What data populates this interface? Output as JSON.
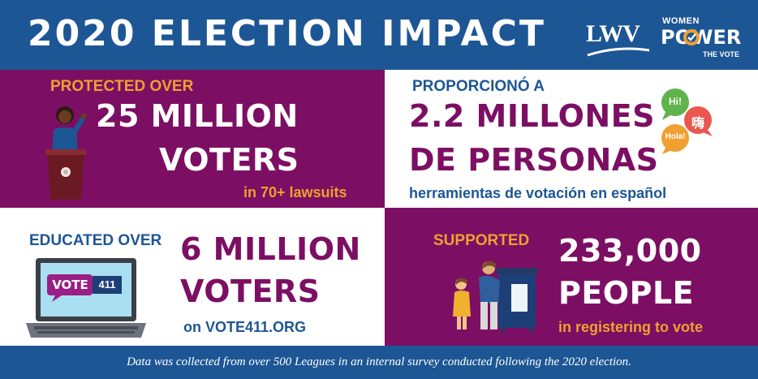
{
  "header": {
    "title": "2020 ELECTION IMPACT",
    "logo_lwv": "LWV",
    "logo_wpv_top": "WOMEN",
    "logo_wpv_mid": "POWER",
    "logo_wpv_bottom": "THE VOTE"
  },
  "cells": {
    "protected": {
      "label": "PROTECTED OVER",
      "line1": "25 MILLION",
      "line2": "VOTERS",
      "sub": "in 70+ lawsuits",
      "icon": "speaker-at-podium-icon"
    },
    "spanish": {
      "label": "PROPORCIONÓ A",
      "line1": "2.2 MILLONES",
      "line2": "DE PERSONAS",
      "sub": "herramientas de votación en español",
      "icon": "speech-bubbles-icon",
      "bubbles": [
        "Hi!",
        "嗨",
        "Hola!"
      ]
    },
    "educated": {
      "label": "EDUCATED OVER",
      "line1": "6 MILLION",
      "line2": "VOTERS",
      "sub": "on VOTE411.ORG",
      "icon": "laptop-icon",
      "screen_vote": "VOTE",
      "screen_411": "411"
    },
    "supported": {
      "label": "SUPPORTED",
      "line1": "233,000",
      "line2": "PEOPLE",
      "sub": "in registering to vote",
      "icon": "voters-at-booth-icon"
    }
  },
  "footer": {
    "note": "Data was collected from over 500 Leagues in an internal survey conducted following the 2020 election."
  },
  "colors": {
    "blue": "#1d5694",
    "purple": "#7c0f63",
    "orange": "#f0a030",
    "white": "#ffffff"
  }
}
